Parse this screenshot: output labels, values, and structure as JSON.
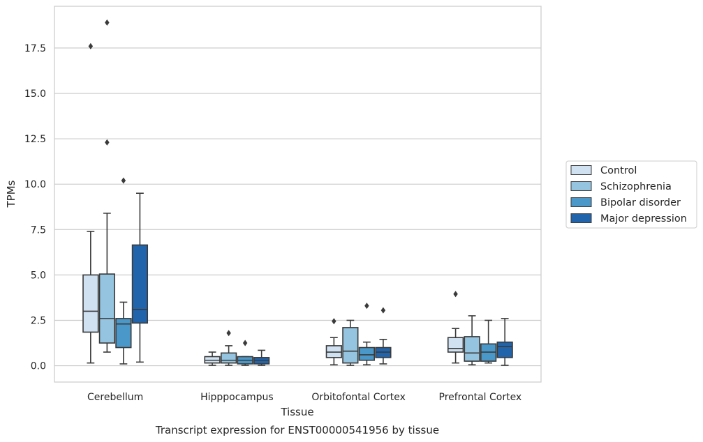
{
  "chart_data": {
    "type": "box",
    "xlabel": "Tissue",
    "ylabel": "TPMs",
    "caption": "Transcript expression for ENST00000541956 by tissue",
    "ylim": [
      -0.9,
      19.8
    ],
    "yticks": [
      0.0,
      2.5,
      5.0,
      7.5,
      10.0,
      12.5,
      15.0,
      17.5
    ],
    "ytick_labels": [
      "0.0",
      "2.5",
      "5.0",
      "7.5",
      "10.0",
      "12.5",
      "15.0",
      "17.5"
    ],
    "grid": "horizontal",
    "legend_position": "right",
    "categories": [
      "Cerebellum",
      "Hipppocampus",
      "Orbitofontal Cortex",
      "Prefrontal Cortex"
    ],
    "series": [
      {
        "name": "Control",
        "color": "#d0e1f2",
        "boxes": [
          {
            "whislo": 0.15,
            "q1": 1.85,
            "med": 3.0,
            "q3": 5.0,
            "whishi": 7.4,
            "fliers": [
              17.6
            ]
          },
          {
            "whislo": 0.02,
            "q1": 0.15,
            "med": 0.3,
            "q3": 0.5,
            "whishi": 0.75,
            "fliers": []
          },
          {
            "whislo": 0.05,
            "q1": 0.45,
            "med": 0.75,
            "q3": 1.1,
            "whishi": 1.55,
            "fliers": [
              2.45
            ]
          },
          {
            "whislo": 0.15,
            "q1": 0.75,
            "med": 0.95,
            "q3": 1.55,
            "whishi": 2.05,
            "fliers": [
              3.95
            ]
          }
        ]
      },
      {
        "name": "Schizophrenia",
        "color": "#94c4df",
        "boxes": [
          {
            "whislo": 0.75,
            "q1": 1.25,
            "med": 2.6,
            "q3": 5.05,
            "whishi": 8.4,
            "fliers": [
              18.9,
              12.3
            ]
          },
          {
            "whislo": 0.02,
            "q1": 0.15,
            "med": 0.3,
            "q3": 0.7,
            "whishi": 1.1,
            "fliers": [
              1.8
            ]
          },
          {
            "whislo": 0.02,
            "q1": 0.15,
            "med": 0.8,
            "q3": 2.1,
            "whishi": 2.5,
            "fliers": []
          },
          {
            "whislo": 0.05,
            "q1": 0.25,
            "med": 0.7,
            "q3": 1.6,
            "whishi": 2.75,
            "fliers": []
          }
        ]
      },
      {
        "name": "Bipolar disorder",
        "color": "#4a98c9",
        "boxes": [
          {
            "whislo": 0.1,
            "q1": 1.0,
            "med": 2.3,
            "q3": 2.6,
            "whishi": 3.5,
            "fliers": [
              10.2
            ]
          },
          {
            "whislo": 0.02,
            "q1": 0.1,
            "med": 0.3,
            "q3": 0.5,
            "whishi": 0.5,
            "fliers": [
              1.25
            ]
          },
          {
            "whislo": 0.05,
            "q1": 0.3,
            "med": 0.6,
            "q3": 1.0,
            "whishi": 1.3,
            "fliers": [
              3.3
            ]
          },
          {
            "whislo": 0.15,
            "q1": 0.25,
            "med": 0.75,
            "q3": 1.2,
            "whishi": 2.5,
            "fliers": []
          }
        ]
      },
      {
        "name": "Major depression",
        "color": "#2164ab",
        "boxes": [
          {
            "whislo": 0.2,
            "q1": 2.35,
            "med": 3.1,
            "q3": 6.65,
            "whishi": 9.5,
            "fliers": []
          },
          {
            "whislo": 0.02,
            "q1": 0.1,
            "med": 0.3,
            "q3": 0.45,
            "whishi": 0.85,
            "fliers": []
          },
          {
            "whislo": 0.1,
            "q1": 0.45,
            "med": 0.75,
            "q3": 1.0,
            "whishi": 1.45,
            "fliers": [
              3.05
            ]
          },
          {
            "whislo": 0.02,
            "q1": 0.45,
            "med": 1.05,
            "q3": 1.3,
            "whishi": 2.6,
            "fliers": []
          }
        ]
      }
    ]
  }
}
